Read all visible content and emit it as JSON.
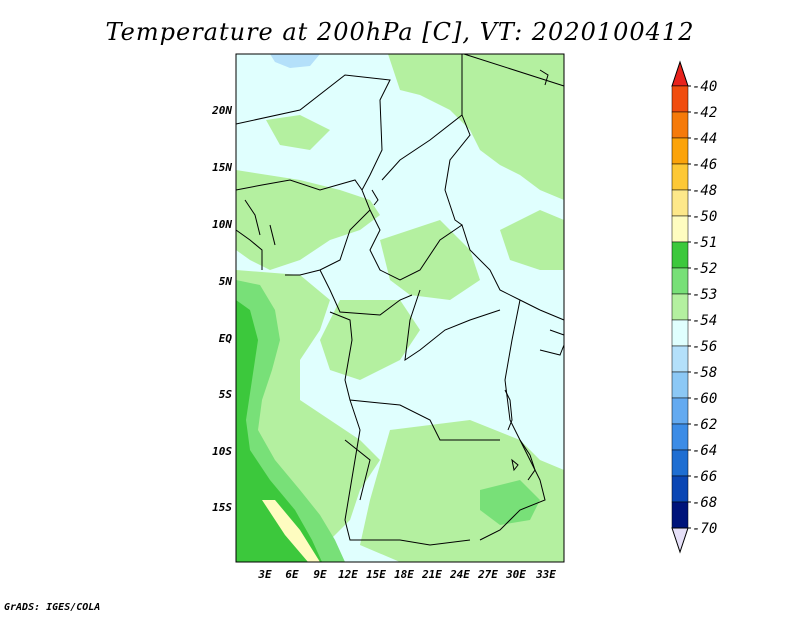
{
  "title": "Temperature at 200hPa [C], VT: 2020100412",
  "credit": "GrADS: IGES/COLA",
  "map": {
    "lat_labels": [
      "20N",
      "15N",
      "10N",
      "5N",
      "EQ",
      "5S",
      "10S",
      "15S"
    ],
    "lon_labels": [
      "3E",
      "6E",
      "9E",
      "12E",
      "15E",
      "18E",
      "21E",
      "24E",
      "27E",
      "30E",
      "33E"
    ]
  },
  "colorbar": {
    "labels": [
      "-40",
      "-42",
      "-44",
      "-46",
      "-48",
      "-50",
      "-51",
      "-52",
      "-53",
      "-54",
      "-56",
      "-58",
      "-60",
      "-62",
      "-64",
      "-66",
      "-68",
      "-70"
    ],
    "colors": [
      "#e8221c",
      "#f04d0f",
      "#f57a0a",
      "#fba30a",
      "#fdc836",
      "#fde88a",
      "#fefcc0",
      "#3cc83c",
      "#78e078",
      "#b4f0a0",
      "#e0fffe",
      "#b4e0fa",
      "#8cc8f5",
      "#64aaf0",
      "#3c8ce6",
      "#1e6ed2",
      "#0a46b4",
      "#00147a",
      "#e6e0f8"
    ]
  }
}
